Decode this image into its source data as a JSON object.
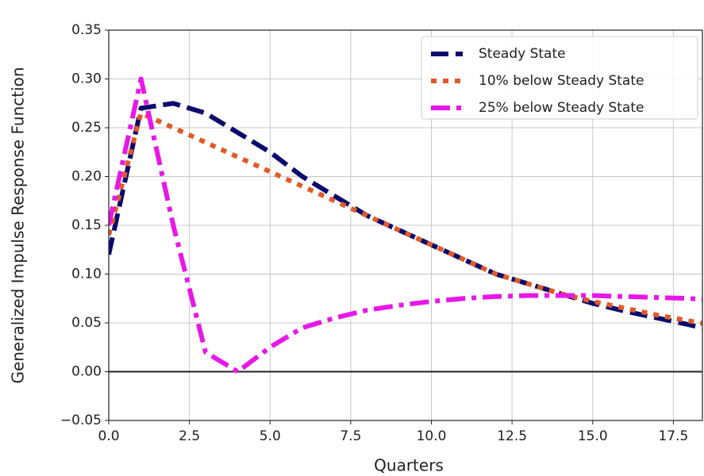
{
  "chart_data": {
    "type": "line",
    "x_label": "Quarters",
    "y_label": "Generalized Impulse Response Function",
    "x": [
      0,
      1,
      2,
      3,
      4,
      5,
      6,
      7,
      8,
      9,
      10,
      11,
      12,
      13,
      14,
      15,
      16,
      17,
      18,
      19
    ],
    "series": [
      {
        "name": "Steady State",
        "color": "#0a0a6e",
        "style": "dashed",
        "values": [
          0.12,
          0.27,
          0.275,
          0.265,
          0.245,
          0.225,
          0.2,
          0.18,
          0.16,
          0.145,
          0.13,
          0.115,
          0.1,
          0.09,
          0.08,
          0.07,
          0.062,
          0.055,
          0.048,
          0.04
        ]
      },
      {
        "name": "10% below Steady State",
        "color": "#e05a28",
        "style": "dotted",
        "values": [
          0.14,
          0.265,
          0.25,
          0.235,
          0.22,
          0.205,
          0.19,
          0.175,
          0.16,
          0.145,
          0.13,
          0.115,
          0.1,
          0.09,
          0.08,
          0.072,
          0.065,
          0.058,
          0.052,
          0.046
        ]
      },
      {
        "name": "25% below Steady State",
        "color": "#e817e8",
        "style": "dashdot",
        "values": [
          0.15,
          0.3,
          0.15,
          0.02,
          0.0,
          0.025,
          0.045,
          0.055,
          0.063,
          0.068,
          0.072,
          0.075,
          0.077,
          0.078,
          0.078,
          0.078,
          0.077,
          0.076,
          0.075,
          0.073
        ]
      }
    ],
    "xlim": [
      0,
      18.4
    ],
    "ylim": [
      -0.05,
      0.35
    ],
    "xticks": [
      {
        "value": 0,
        "label": "0.0"
      },
      {
        "value": 2.5,
        "label": "2.5"
      },
      {
        "value": 5,
        "label": "5.0"
      },
      {
        "value": 7.5,
        "label": "7.5"
      },
      {
        "value": 10,
        "label": "10.0"
      },
      {
        "value": 12.5,
        "label": "12.5"
      },
      {
        "value": 15,
        "label": "15.0"
      },
      {
        "value": 17.5,
        "label": "17.5"
      }
    ],
    "yticks": [
      {
        "value": -0.05,
        "label": "−0.05"
      },
      {
        "value": 0,
        "label": "0.00"
      },
      {
        "value": 0.05,
        "label": "0.05"
      },
      {
        "value": 0.1,
        "label": "0.10"
      },
      {
        "value": 0.15,
        "label": "0.15"
      },
      {
        "value": 0.2,
        "label": "0.20"
      },
      {
        "value": 0.25,
        "label": "0.25"
      },
      {
        "value": 0.3,
        "label": "0.30"
      },
      {
        "value": 0.35,
        "label": "0.35"
      }
    ],
    "reference_line": 0,
    "grid": true,
    "legend": "upper right"
  }
}
